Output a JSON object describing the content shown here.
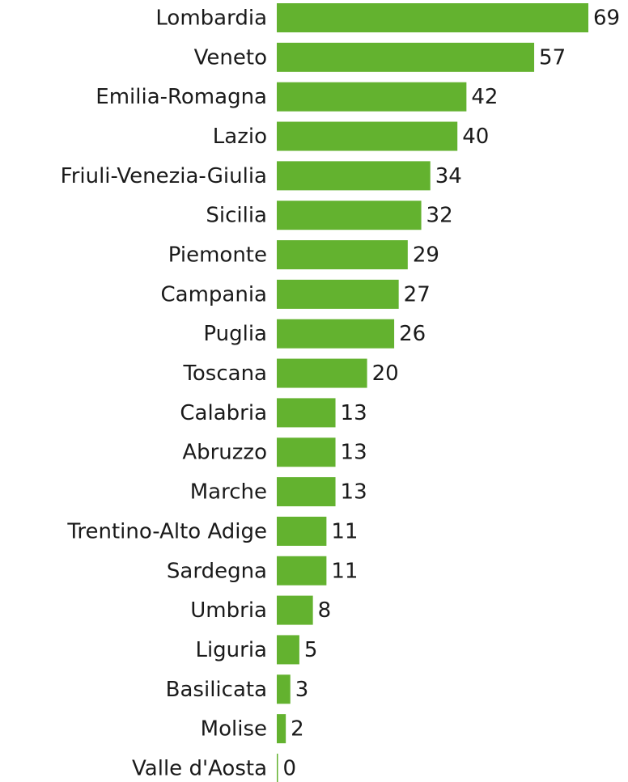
{
  "chart_data": {
    "type": "bar",
    "orientation": "horizontal",
    "categories": [
      "Lombardia",
      "Veneto",
      "Emilia-Romagna",
      "Lazio",
      "Friuli-Venezia-Giulia",
      "Sicilia",
      "Piemonte",
      "Campania",
      "Puglia",
      "Toscana",
      "Calabria",
      "Abruzzo",
      "Marche",
      "Trentino-Alto Adige",
      "Sardegna",
      "Umbria",
      "Liguria",
      "Basilicata",
      "Molise",
      "Valle d'Aosta"
    ],
    "values": [
      69,
      57,
      42,
      40,
      34,
      32,
      29,
      27,
      26,
      20,
      13,
      13,
      13,
      11,
      11,
      8,
      5,
      3,
      2,
      0
    ],
    "color": "#63b22f"
  }
}
